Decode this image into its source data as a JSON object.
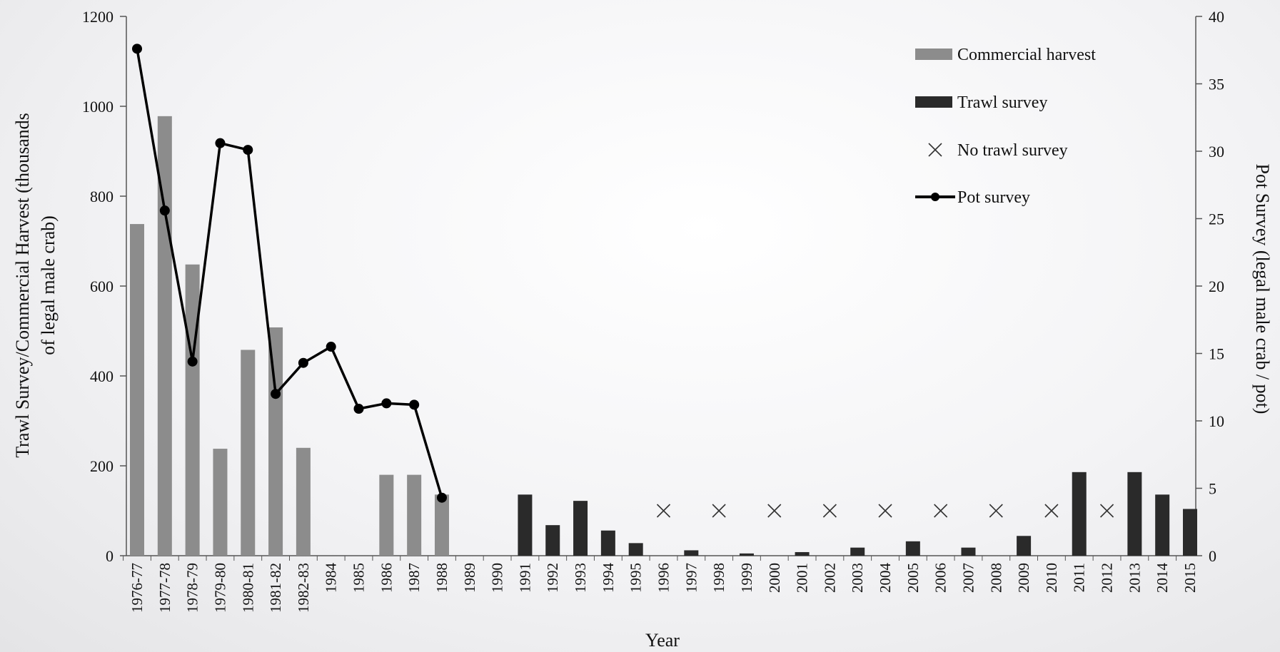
{
  "chart_data": {
    "type": "bar",
    "title": "",
    "xlabel": "Year",
    "ylabel_left": "Trawl Survey/Commercial Harvest  (thousands of legal male crab)",
    "ylabel_right": "Pot Survey (legal male crab / pot)",
    "ylim_left": [
      0,
      1200
    ],
    "ylim_right": [
      0,
      40
    ],
    "yticks_left": [
      0,
      200,
      400,
      600,
      800,
      1000,
      1200
    ],
    "yticks_right": [
      0,
      5,
      10,
      15,
      20,
      25,
      30,
      35,
      40
    ],
    "categories": [
      "1976-77",
      "1977-78",
      "1978-79",
      "1979-80",
      "1980-81",
      "1981-82",
      "1982-83",
      "1984",
      "1985",
      "1986",
      "1987",
      "1988",
      "1989",
      "1990",
      "1991",
      "1992",
      "1993",
      "1994",
      "1995",
      "1996",
      "1997",
      "1998",
      "1999",
      "2000",
      "2001",
      "2002",
      "2003",
      "2004",
      "2005",
      "2006",
      "2007",
      "2008",
      "2009",
      "2010",
      "2011",
      "2012",
      "2013",
      "2014",
      "2015"
    ],
    "legend_position": "top-right",
    "colors": {
      "commercial": "#8c8c8c",
      "trawl": "#2a2a2a",
      "pot": "#000000",
      "no_trawl": "#333333"
    },
    "series": [
      {
        "name": "Commercial harvest",
        "kind": "bar",
        "axis": "left",
        "values": [
          738,
          978,
          648,
          238,
          458,
          508,
          240,
          null,
          null,
          180,
          180,
          136,
          null,
          null,
          null,
          null,
          null,
          null,
          null,
          null,
          null,
          null,
          null,
          null,
          null,
          null,
          null,
          null,
          null,
          null,
          null,
          null,
          null,
          null,
          null,
          null,
          null,
          null,
          null
        ]
      },
      {
        "name": "Trawl survey",
        "kind": "bar",
        "axis": "left",
        "values": [
          null,
          null,
          null,
          null,
          null,
          null,
          null,
          null,
          null,
          null,
          null,
          null,
          null,
          null,
          136,
          68,
          122,
          56,
          28,
          null,
          12,
          null,
          5,
          null,
          8,
          null,
          18,
          null,
          32,
          null,
          18,
          null,
          44,
          null,
          186,
          null,
          186,
          136,
          104
        ]
      },
      {
        "name": "No trawl survey",
        "kind": "marker",
        "axis": "left",
        "values": [
          null,
          null,
          null,
          null,
          null,
          null,
          null,
          null,
          null,
          null,
          null,
          null,
          null,
          null,
          null,
          null,
          null,
          null,
          null,
          100,
          null,
          100,
          null,
          100,
          null,
          100,
          null,
          100,
          null,
          100,
          null,
          100,
          null,
          100,
          null,
          100,
          null,
          null,
          null
        ]
      },
      {
        "name": "Pot survey",
        "kind": "line",
        "axis": "right",
        "values": [
          37.6,
          25.6,
          14.4,
          30.6,
          30.1,
          12.0,
          14.3,
          15.5,
          10.9,
          11.3,
          11.2,
          4.3,
          null,
          null,
          null,
          null,
          null,
          null,
          null,
          null,
          null,
          null,
          null,
          null,
          null,
          null,
          null,
          null,
          null,
          null,
          null,
          null,
          null,
          null,
          null,
          null,
          null,
          null,
          null
        ]
      }
    ]
  }
}
